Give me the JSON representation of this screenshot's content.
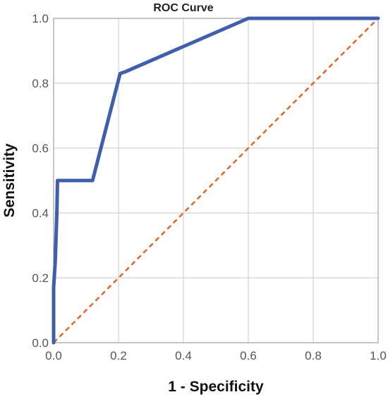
{
  "chart_data": {
    "type": "line",
    "title": "ROC Curve",
    "xlabel": "1 - Specificity",
    "ylabel": "Sensitivity",
    "xlim": [
      0,
      1
    ],
    "ylim": [
      0,
      1
    ],
    "x_ticks": [
      "0.0",
      "0.2",
      "0.4",
      "0.6",
      "0.8",
      "1.0"
    ],
    "y_ticks": [
      "0.0",
      "0.2",
      "0.4",
      "0.6",
      "0.8",
      "1.0"
    ],
    "grid": true,
    "series": [
      {
        "color": "#3f5fae",
        "points": [
          [
            0,
            0
          ],
          [
            0,
            0.17
          ],
          [
            0.005,
            0.25
          ],
          [
            0.01,
            0.4
          ],
          [
            0.012,
            0.5
          ],
          [
            0.12,
            0.5
          ],
          [
            0.205,
            0.83
          ],
          [
            0.22,
            0.835
          ],
          [
            0.6,
            1.0
          ],
          [
            1.0,
            1.0
          ]
        ]
      },
      {
        "color": "#e0652a",
        "dashed": true,
        "points": [
          [
            0,
            0
          ],
          [
            1,
            1
          ]
        ]
      }
    ]
  }
}
